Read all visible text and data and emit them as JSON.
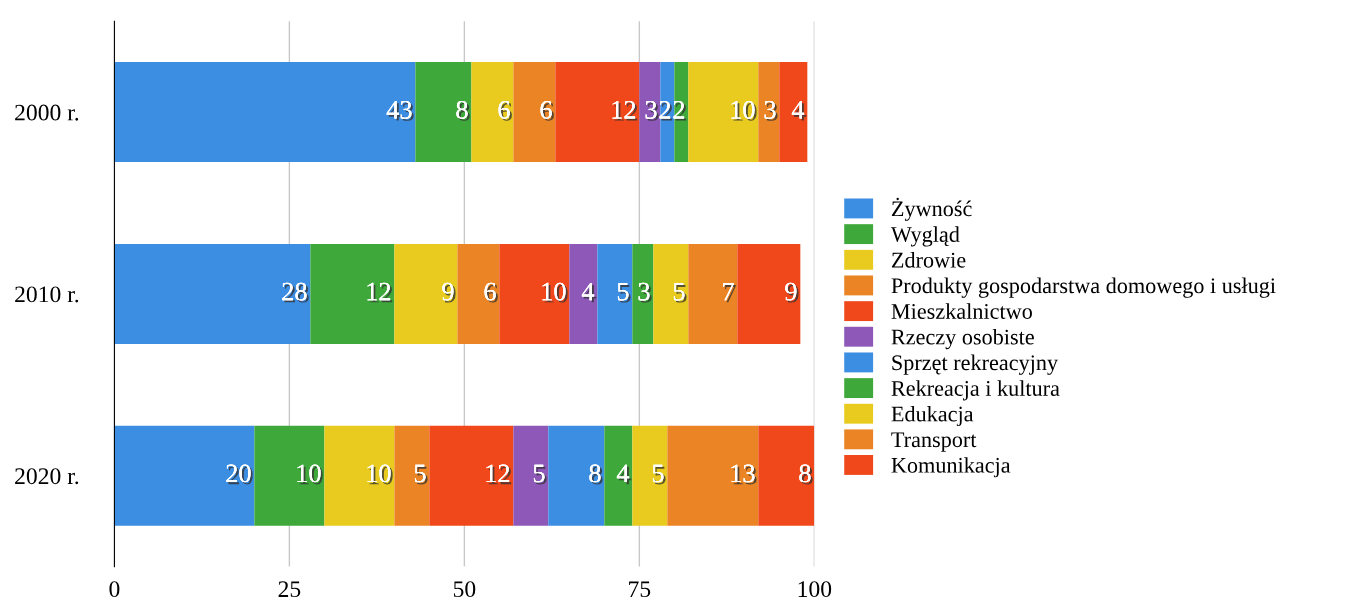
{
  "chart_data": {
    "type": "bar",
    "orientation": "horizontal",
    "stacked": true,
    "data_labels": true,
    "grid": "x",
    "legend": "right",
    "categories": [
      "2000 r.",
      "2010 r.",
      "2020 r."
    ],
    "xlim": [
      0,
      100
    ],
    "xticks": [
      0,
      25,
      50,
      75,
      100
    ],
    "series": [
      {
        "name": "Żywność",
        "color": "#3c8ee3",
        "values": [
          43,
          28,
          20
        ]
      },
      {
        "name": "Wygląd",
        "color": "#3ea83a",
        "values": [
          8,
          12,
          10
        ]
      },
      {
        "name": "Zdrowie",
        "color": "#e8cb1e",
        "values": [
          6,
          9,
          10
        ]
      },
      {
        "name": "Produkty gospodarstwa domowego i usługi",
        "color": "#ea8424",
        "values": [
          6,
          6,
          5
        ]
      },
      {
        "name": "Mieszkalnictwo",
        "color": "#f0481b",
        "values": [
          12,
          10,
          12
        ]
      },
      {
        "name": "Rzeczy osobiste",
        "color": "#8e58b8",
        "values": [
          3,
          4,
          5
        ]
      },
      {
        "name": "Sprzęt rekreacyjny",
        "color": "#3c8ee3",
        "values": [
          2,
          5,
          8
        ]
      },
      {
        "name": "Rekreacja i kultura",
        "color": "#3ea83a",
        "values": [
          2,
          3,
          4
        ]
      },
      {
        "name": "Edukacja",
        "color": "#e8cb1e",
        "values": [
          10,
          5,
          5
        ]
      },
      {
        "name": "Transport",
        "color": "#ea8424",
        "values": [
          3,
          7,
          13
        ]
      },
      {
        "name": "Komunikacja",
        "color": "#f0481b",
        "values": [
          4,
          9,
          8
        ]
      }
    ]
  }
}
